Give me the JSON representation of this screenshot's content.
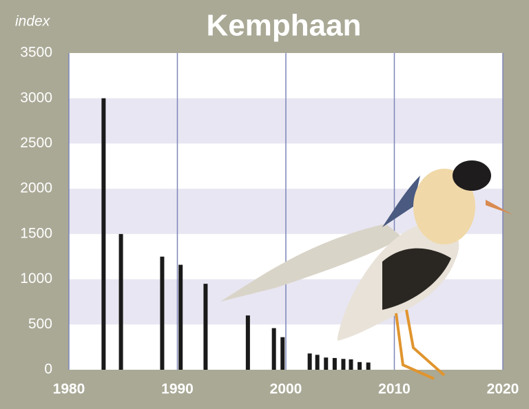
{
  "chart_data": {
    "type": "bar",
    "title": "Kemphaan",
    "y_label": "index",
    "x": [
      1983.2,
      1984.8,
      1988.6,
      1990.3,
      1992.6,
      1996.5,
      1998.9,
      1999.7,
      2002.2,
      2002.9,
      2003.7,
      2004.5,
      2005.3,
      2006.0,
      2006.8,
      2007.6
    ],
    "values": [
      3000,
      1500,
      1250,
      1160,
      950,
      600,
      460,
      360,
      180,
      165,
      135,
      130,
      120,
      115,
      85,
      80
    ],
    "color": "#1a1a1a",
    "xlim": [
      1980,
      2020
    ],
    "xticks": [
      1980,
      1990,
      2000,
      2010,
      2020
    ],
    "ylim": [
      0,
      3500
    ],
    "yticks": [
      0,
      500,
      1000,
      1500,
      2000,
      2500,
      3000,
      3500
    ],
    "grid": true,
    "bands": true
  }
}
